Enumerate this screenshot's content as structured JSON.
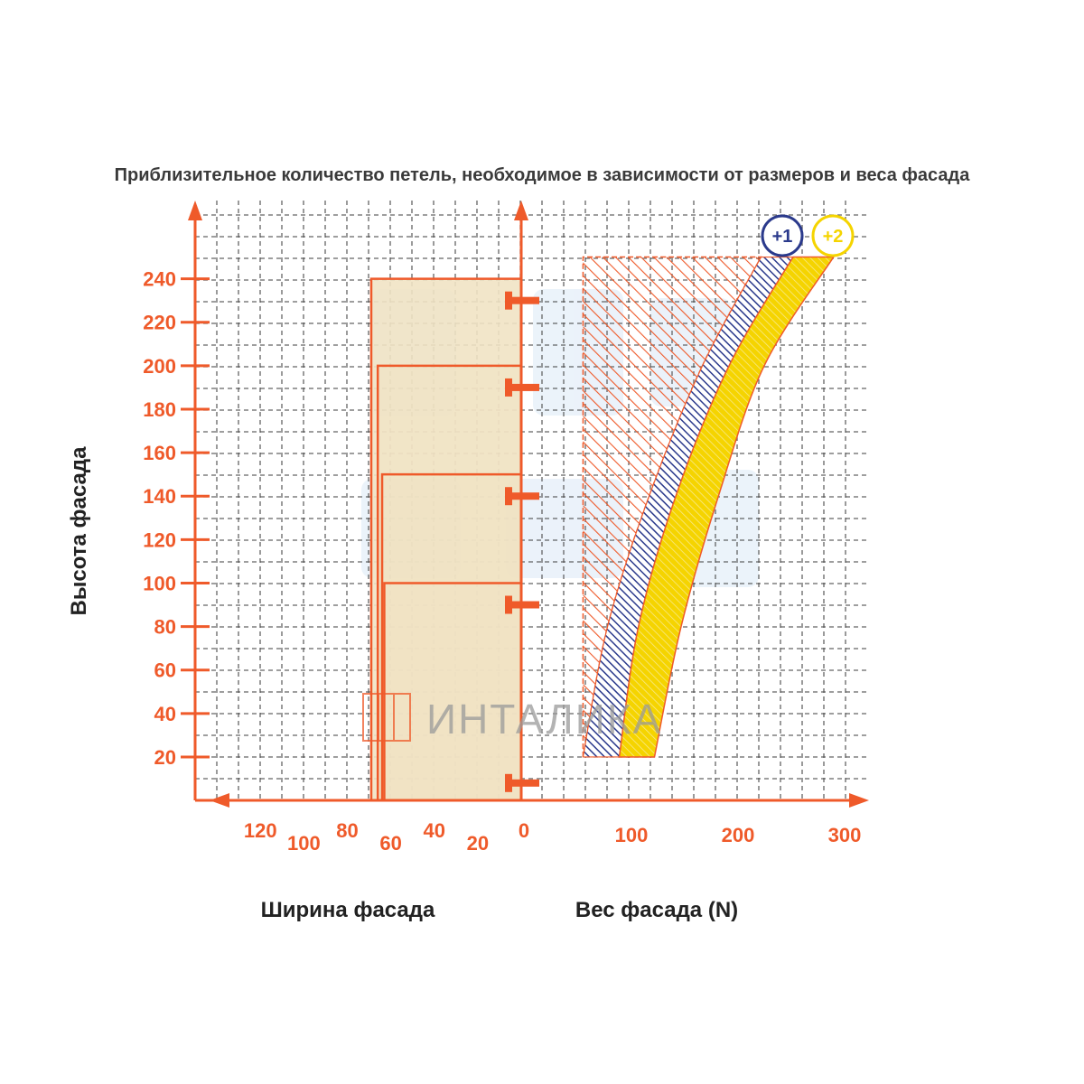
{
  "title": "Приблизительное количество петель, необходимое в зависимости от размеров и веса фасада",
  "colors": {
    "accent": "#ef5a2a",
    "grid": "#4a4a4a",
    "band_plus1": "#2b3a8c",
    "band_plus2": "#f5d400",
    "door_fill": "#f1e3c4",
    "watermark_blue": "#dbe9f6"
  },
  "watermark": {
    "text": "ИНТАЛИКА",
    "icon": "wardrobe-logo-icon"
  },
  "chart_data": {
    "type": "area",
    "title": "Приблизительное количество петель, необходимое в зависимости от размеров и веса фасада",
    "ylabel": "Высота фасада",
    "xlabel_left": "Ширина фасада",
    "xlabel_right": "Вес фасада (N)",
    "y_ticks": [
      "20",
      "40",
      "60",
      "80",
      "100",
      "120",
      "140",
      "160",
      "180",
      "200",
      "220",
      "240"
    ],
    "left_x_ticks": [
      "120",
      "100",
      "80",
      "60",
      "40",
      "20",
      "0"
    ],
    "right_x_ticks": [
      "100",
      "200",
      "300"
    ],
    "ylim": [
      0,
      260
    ],
    "width_xlim": [
      150,
      0
    ],
    "weight_xlim": [
      0,
      320
    ],
    "grid": true,
    "doors": [
      {
        "hinges": 2,
        "height": 100,
        "width": 63,
        "hinge_positions": [
          8,
          90
        ]
      },
      {
        "hinges": 3,
        "height": 150,
        "width": 64,
        "hinge_positions": [
          8,
          90,
          140
        ]
      },
      {
        "hinges": 4,
        "height": 200,
        "width": 66,
        "hinge_positions": [
          8,
          90,
          140,
          190
        ]
      },
      {
        "hinges": 5,
        "height": 240,
        "width": 69,
        "hinge_positions": [
          8,
          90,
          140,
          190,
          230
        ]
      }
    ],
    "regions": [
      {
        "name": "base",
        "color": "#ef5a2a",
        "pattern": "hatch",
        "boundary": {
          "height": [
            20,
            80,
            140,
            200,
            250
          ],
          "weight": [
            58,
            58,
            58,
            58,
            58
          ]
        }
      },
      {
        "name": "+1",
        "color": "#2b3a8c",
        "pattern": "hatch",
        "left": {
          "height": [
            20,
            80,
            140,
            200,
            250
          ],
          "weight": [
            58,
            81,
            120,
            170,
            225
          ]
        },
        "right": {
          "height": [
            20,
            80,
            140,
            200,
            250
          ],
          "weight": [
            92,
            110,
            145,
            195,
            255
          ]
        }
      },
      {
        "name": "+2",
        "color": "#f5d400",
        "pattern": "hatch",
        "left": {
          "height": [
            20,
            80,
            140,
            200,
            250
          ],
          "weight": [
            92,
            110,
            145,
            195,
            255
          ]
        },
        "right": {
          "height": [
            20,
            80,
            140,
            200,
            250
          ],
          "weight": [
            125,
            150,
            185,
            228,
            293
          ]
        }
      }
    ]
  }
}
